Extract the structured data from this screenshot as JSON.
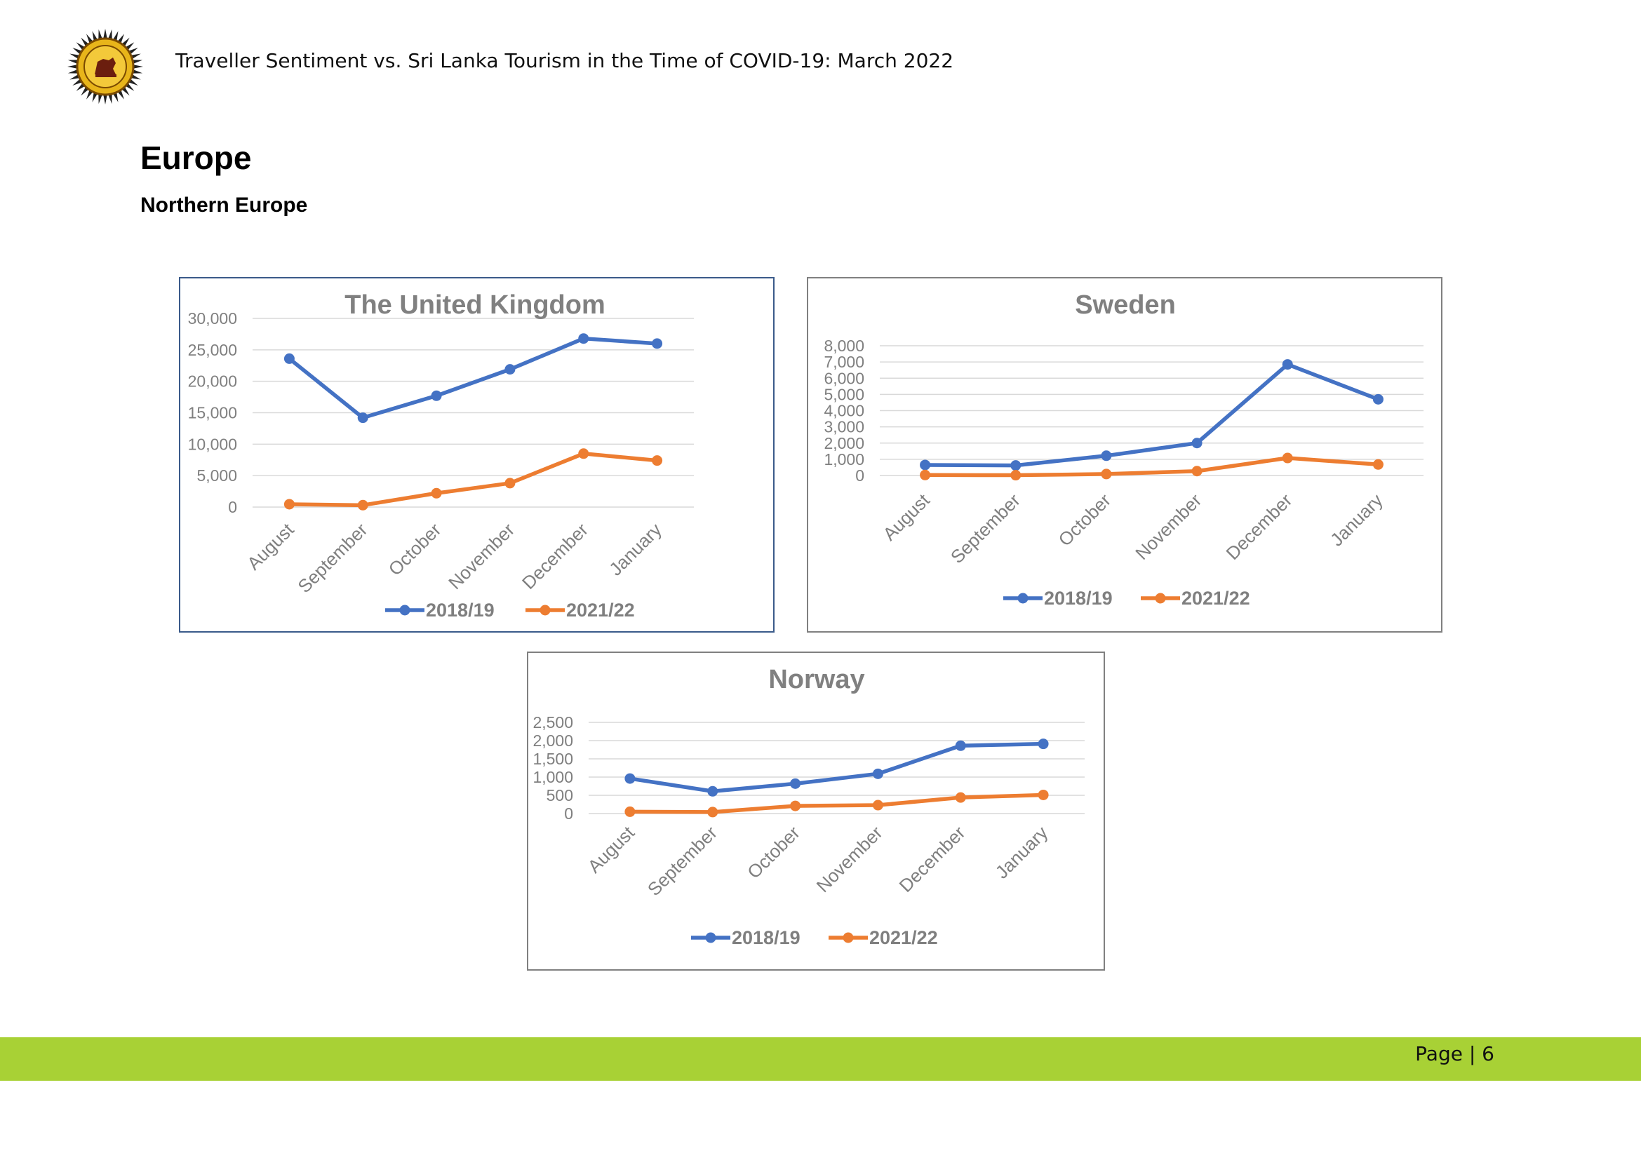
{
  "header": {
    "title": "Traveller Sentiment vs. Sri Lanka Tourism in the Time of COVID-19: March 2022",
    "logo_icon": "sri-lanka-tourism-seal"
  },
  "section_title": "Europe",
  "subsection_title": "Northern Europe",
  "footer": {
    "page_label": "Page | 6"
  },
  "colors": {
    "series_2018_19": "#4472C4",
    "series_2021_22": "#ED7D31",
    "axis_text": "#7f7f7f",
    "gridline": "#d9d9d9",
    "footer_bar": "#a8d135"
  },
  "chart_data": [
    {
      "id": "uk",
      "type": "line",
      "title": "The United Kingdom",
      "categories": [
        "August",
        "September",
        "October",
        "November",
        "December",
        "January"
      ],
      "series": [
        {
          "name": "2018/19",
          "values": [
            23600,
            14200,
            17700,
            21900,
            26800,
            26000
          ]
        },
        {
          "name": "2021/22",
          "values": [
            450,
            300,
            2200,
            3800,
            8500,
            7400
          ]
        }
      ],
      "y_ticks": [
        "0",
        "5,000",
        "10,000",
        "15,000",
        "20,000",
        "25,000",
        "30,000"
      ],
      "ylim": [
        0,
        30000
      ],
      "grid": true,
      "legend_position": "bottom"
    },
    {
      "id": "se",
      "type": "line",
      "title": "Sweden",
      "categories": [
        "August",
        "September",
        "October",
        "November",
        "December",
        "January"
      ],
      "series": [
        {
          "name": "2018/19",
          "values": [
            650,
            620,
            1220,
            2000,
            6850,
            4700
          ]
        },
        {
          "name": "2021/22",
          "values": [
            30,
            20,
            90,
            270,
            1080,
            680
          ]
        }
      ],
      "y_ticks": [
        "0",
        "1,000",
        "2,000",
        "3,000",
        "4,000",
        "5,000",
        "6,000",
        "7,000",
        "8,000"
      ],
      "ylim": [
        0,
        8000
      ],
      "grid": true,
      "legend_position": "bottom"
    },
    {
      "id": "no",
      "type": "line",
      "title": "Norway",
      "categories": [
        "August",
        "September",
        "October",
        "November",
        "December",
        "January"
      ],
      "series": [
        {
          "name": "2018/19",
          "values": [
            960,
            610,
            820,
            1090,
            1860,
            1910
          ]
        },
        {
          "name": "2021/22",
          "values": [
            50,
            40,
            210,
            230,
            440,
            510
          ]
        }
      ],
      "y_ticks": [
        "0",
        "500",
        "1,000",
        "1,500",
        "2,000",
        "2,500"
      ],
      "ylim": [
        0,
        2500
      ],
      "grid": true,
      "legend_position": "bottom"
    }
  ]
}
